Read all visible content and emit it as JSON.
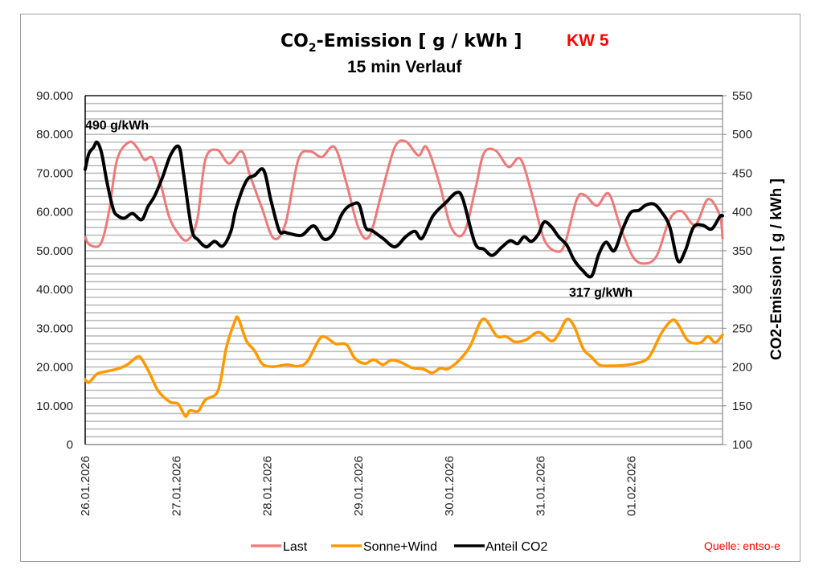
{
  "chart_data": {
    "type": "line",
    "title": "CO2-Emission [ g / kWh ]",
    "title_parts": {
      "prefix": "CO",
      "subscript": "2",
      "suffix": "-Emission [ g / kWh ]"
    },
    "subtitle": "15 min Verlauf",
    "week_label": "KW 5",
    "source": "Quelle: entso-e",
    "xlabel": "",
    "ylabel_left": "",
    "ylabel_right": "CO2-Emission [ g / kWh ]",
    "x_range_days": [
      0,
      7
    ],
    "x_tick_labels": [
      "26.01.2026",
      "27.01.2026",
      "28.01.2026",
      "29.01.2026",
      "30.01.2026",
      "31.01.2026",
      "01.02.2026"
    ],
    "y_left": {
      "min": 0,
      "max": 90000,
      "major_step": 10000,
      "minor_step": 2000,
      "tick_labels": [
        "0",
        "10.000",
        "20.000",
        "30.000",
        "40.000",
        "50.000",
        "60.000",
        "70.000",
        "80.000",
        "90.000"
      ]
    },
    "y_right": {
      "min": 100,
      "max": 550,
      "major_step": 50,
      "tick_labels": [
        "100",
        "150",
        "200",
        "250",
        "300",
        "350",
        "400",
        "450",
        "500",
        "550"
      ]
    },
    "grid": true,
    "legend_position": "bottom",
    "annotations": [
      {
        "text": "490 g/kWh",
        "series": "Anteil CO2",
        "note": "weekly maximum"
      },
      {
        "text": "317 g/kWh",
        "series": "Anteil CO2",
        "note": "weekly minimum"
      }
    ],
    "series": [
      {
        "name": "Last",
        "axis": "left",
        "color": "#f07878",
        "x_days": [
          0,
          0.05,
          0.17,
          0.26,
          0.35,
          0.48,
          0.57,
          0.65,
          0.74,
          0.83,
          0.92,
          1.01,
          1.12,
          1.23,
          1.32,
          1.45,
          1.58,
          1.72,
          1.81,
          1.94,
          2.07,
          2.2,
          2.34,
          2.47,
          2.6,
          2.74,
          2.87,
          3.0,
          3.12,
          3.26,
          3.4,
          3.52,
          3.66,
          3.75,
          3.89,
          4.02,
          4.16,
          4.29,
          4.38,
          4.51,
          4.65,
          4.78,
          4.91,
          5.04,
          5.18,
          5.27,
          5.4,
          5.49,
          5.62,
          5.75,
          5.88,
          6.02,
          6.15,
          6.28,
          6.42,
          6.55,
          6.7,
          6.84,
          6.97,
          7.0
        ],
        "values": [
          53500,
          51500,
          51800,
          60000,
          73500,
          78000,
          76600,
          73500,
          73900,
          67200,
          58900,
          54800,
          52700,
          57900,
          73500,
          76000,
          72500,
          75600,
          69400,
          61100,
          53200,
          57000,
          73500,
          75600,
          74200,
          76700,
          67400,
          56000,
          53700,
          65300,
          76700,
          78200,
          74600,
          76700,
          67400,
          56000,
          54600,
          66400,
          75200,
          75800,
          71600,
          73700,
          64300,
          52900,
          49800,
          51900,
          63300,
          64300,
          61600,
          64700,
          56000,
          48300,
          46700,
          48800,
          58100,
          60200,
          56700,
          63300,
          59100,
          53200
        ]
      },
      {
        "name": "Sonne+Wind",
        "axis": "left",
        "color": "#ff9900",
        "x_days": [
          0,
          0.04,
          0.13,
          0.22,
          0.35,
          0.46,
          0.57,
          0.62,
          0.71,
          0.8,
          0.93,
          1.02,
          1.1,
          1.15,
          1.24,
          1.32,
          1.46,
          1.55,
          1.64,
          1.68,
          1.77,
          1.86,
          1.95,
          2.07,
          2.21,
          2.34,
          2.44,
          2.57,
          2.64,
          2.75,
          2.87,
          2.96,
          3.07,
          3.17,
          3.27,
          3.36,
          3.47,
          3.59,
          3.71,
          3.81,
          3.9,
          3.98,
          4.11,
          4.23,
          4.37,
          4.52,
          4.62,
          4.72,
          4.84,
          4.98,
          5.12,
          5.2,
          5.29,
          5.37,
          5.47,
          5.56,
          5.65,
          5.77,
          5.89,
          6.04,
          6.19,
          6.33,
          6.45,
          6.52,
          6.62,
          6.75,
          6.84,
          6.92,
          7.0
        ],
        "values": [
          16800,
          16000,
          18200,
          18800,
          19500,
          20600,
          22600,
          22100,
          18300,
          13900,
          11000,
          10500,
          7300,
          8800,
          8600,
          11500,
          14000,
          25000,
          31500,
          32600,
          26800,
          24200,
          20700,
          20100,
          20600,
          20200,
          21500,
          27100,
          27700,
          26000,
          25800,
          22300,
          20900,
          21900,
          20600,
          21800,
          21200,
          19800,
          19500,
          18500,
          19700,
          19500,
          21800,
          25500,
          32400,
          28000,
          27900,
          26500,
          27000,
          29000,
          26700,
          28600,
          32300,
          30500,
          24700,
          22600,
          20500,
          20300,
          20400,
          20900,
          22500,
          28800,
          32100,
          30700,
          26800,
          26200,
          27900,
          26300,
          28300
        ]
      },
      {
        "name": "Anteil CO2",
        "axis": "right",
        "color": "#000000",
        "x_days": [
          0,
          0.04,
          0.09,
          0.13,
          0.18,
          0.24,
          0.31,
          0.36,
          0.43,
          0.52,
          0.62,
          0.69,
          0.76,
          0.85,
          0.94,
          1.03,
          1.08,
          1.17,
          1.24,
          1.33,
          1.42,
          1.51,
          1.6,
          1.66,
          1.77,
          1.86,
          1.96,
          2.04,
          2.13,
          2.19,
          2.25,
          2.38,
          2.51,
          2.62,
          2.72,
          2.81,
          2.87,
          2.94,
          3.01,
          3.08,
          3.15,
          3.27,
          3.4,
          3.52,
          3.62,
          3.7,
          3.82,
          3.96,
          4.08,
          4.15,
          4.28,
          4.38,
          4.47,
          4.58,
          4.67,
          4.75,
          4.82,
          4.9,
          4.98,
          5.04,
          5.12,
          5.2,
          5.29,
          5.37,
          5.46,
          5.56,
          5.64,
          5.72,
          5.81,
          5.9,
          5.99,
          6.08,
          6.16,
          6.25,
          6.33,
          6.42,
          6.51,
          6.59,
          6.68,
          6.78,
          6.88,
          6.97,
          7.0
        ],
        "values": [
          455,
          475,
          483,
          490,
          476,
          438,
          403,
          395,
          392,
          398,
          390,
          407,
          420,
          445,
          474,
          484,
          450,
          378,
          364,
          355,
          362,
          356,
          375,
          406,
          440,
          447,
          454,
          415,
          376,
          374,
          372,
          370,
          382,
          365,
          371,
          395,
          405,
          410,
          409,
          380,
          376,
          366,
          355,
          368,
          375,
          366,
          395,
          412,
          425,
          416,
          360,
          352,
          344,
          355,
          363,
          359,
          368,
          362,
          372,
          387,
          381,
          368,
          357,
          338,
          325,
          317,
          345,
          361,
          350,
          377,
          399,
          402,
          409,
          410,
          400,
          381,
          337,
          350,
          380,
          383,
          378,
          394,
          395
        ]
      }
    ]
  }
}
